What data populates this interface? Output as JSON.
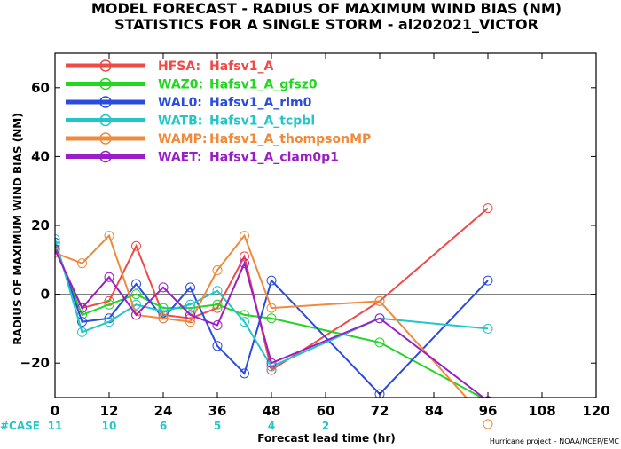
{
  "chart_data": {
    "type": "line",
    "title": "MODEL FORECAST - RADIUS OF MAXIMUM WIND BIAS (NM)",
    "subtitle": "STATISTICS FOR A SINGLE STORM - al202021_VICTOR",
    "xlabel": "Forecast lead time (hr)",
    "ylabel": "RADIUS OF MAXIMUM WIND BIAS (NM)",
    "xlim": [
      0,
      120
    ],
    "ylim": [
      -30,
      70
    ],
    "xticks": [
      0,
      12,
      24,
      36,
      48,
      60,
      72,
      84,
      96,
      108,
      120
    ],
    "yticks": [
      -20,
      0,
      20,
      40,
      60
    ],
    "ytick_labels": [
      "−20",
      "0",
      "20",
      "40",
      "60"
    ],
    "zero_line": true,
    "legend_position": "top-left",
    "series": [
      {
        "name": "HFSA:",
        "label": "Hafsv1_A",
        "color": "#f04a46",
        "x": [
          0,
          6,
          12,
          18,
          24,
          30,
          36,
          42,
          48,
          72,
          96
        ],
        "y": [
          13,
          -4,
          -2,
          14,
          -6,
          -7,
          -4,
          11,
          -22,
          -2,
          25
        ]
      },
      {
        "name": "WAZ0:",
        "label": "Hafsv1_A_gfsz0",
        "color": "#22d622",
        "x": [
          0,
          6,
          12,
          18,
          24,
          30,
          36,
          42,
          48,
          72,
          96
        ],
        "y": [
          14,
          -6,
          -3,
          0,
          -4,
          -4,
          -3,
          -6,
          -7,
          -14,
          -31
        ]
      },
      {
        "name": "WAL0:",
        "label": "Hafsv1_A_rlm0",
        "color": "#2a4be0",
        "x": [
          0,
          6,
          12,
          18,
          24,
          30,
          36,
          42,
          48,
          72,
          96
        ],
        "y": [
          15,
          -8,
          -7,
          3,
          -7,
          2,
          -15,
          -23,
          4,
          -29,
          4
        ]
      },
      {
        "name": "WATB:",
        "label": "Hafsv1_A_tcpbl",
        "color": "#22c6c8",
        "x": [
          0,
          6,
          12,
          18,
          24,
          30,
          36,
          42,
          48,
          72,
          96
        ],
        "y": [
          16,
          -11,
          -8,
          -3,
          -5,
          -3,
          1,
          -8,
          -21,
          -7,
          -10
        ]
      },
      {
        "name": "WAMP:",
        "label": "Hafsv1_A_thompsonMP",
        "color": "#f08a3a",
        "x": [
          0,
          6,
          12,
          18,
          24,
          30,
          36,
          42,
          48,
          72,
          96
        ],
        "y": [
          12,
          9,
          17,
          -6,
          -7,
          -8,
          7,
          17,
          -4,
          -2,
          -37
        ]
      },
      {
        "name": "WAET:",
        "label": "Hafsv1_A_clam0p1",
        "color": "#9a1ec8",
        "x": [
          0,
          6,
          12,
          18,
          24,
          30,
          36,
          42,
          48,
          72,
          96
        ],
        "y": [
          13,
          -4,
          5,
          -6,
          2,
          -6,
          -9,
          9,
          -20,
          -7,
          -31
        ]
      }
    ],
    "case_label": "#CASE",
    "case_counts": [
      {
        "x": 0,
        "label": "11"
      },
      {
        "x": 12,
        "label": "10"
      },
      {
        "x": 24,
        "label": "6"
      },
      {
        "x": 36,
        "label": "5"
      },
      {
        "x": 48,
        "label": "4"
      },
      {
        "x": 60,
        "label": "2"
      }
    ],
    "credit": "Hurricane project – NOAA/NCEP/EMC"
  },
  "colors": {
    "case_label": "#22c6c8",
    "case_values": "#22c6c8",
    "zero_line": "#808080",
    "axes": "#000000"
  }
}
